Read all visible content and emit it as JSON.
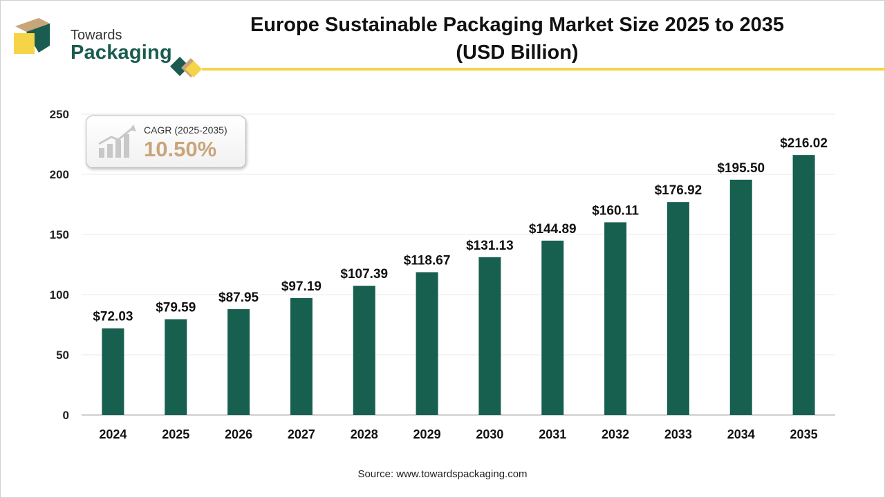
{
  "brand": {
    "line1": "Towards",
    "line2": "Packaging"
  },
  "header": {
    "title_line1": "Europe Sustainable Packaging Market Size 2025 to 2035",
    "title_line2": "(USD Billion)"
  },
  "cagr": {
    "label": "CAGR (2025-2035)",
    "value": "10.50%"
  },
  "source": "Source: www.towardspackaging.com",
  "colors": {
    "bar": "#17604f",
    "accent_yellow": "#f5d547",
    "accent_tan": "#c9a57a",
    "brand_green": "#1a5c4f"
  },
  "chart_data": {
    "type": "bar",
    "title": "Europe Sustainable Packaging Market Size 2025 to 2035 (USD Billion)",
    "categories": [
      "2024",
      "2025",
      "2026",
      "2027",
      "2028",
      "2029",
      "2030",
      "2031",
      "2032",
      "2033",
      "2034",
      "2035"
    ],
    "values": [
      72.03,
      79.59,
      87.95,
      97.19,
      107.39,
      118.67,
      131.13,
      144.89,
      160.11,
      176.92,
      195.5,
      216.02
    ],
    "value_labels": [
      "$72.03",
      "$79.59",
      "$87.95",
      "$97.19",
      "$107.39",
      "$118.67",
      "$131.13",
      "$144.89",
      "$160.11",
      "$176.92",
      "$195.50",
      "$216.02"
    ],
    "ylim": [
      0,
      250
    ],
    "yticks": [
      0,
      50,
      100,
      150,
      200,
      250
    ],
    "xlabel": "",
    "ylabel": "",
    "grid": true,
    "legend": "none"
  }
}
